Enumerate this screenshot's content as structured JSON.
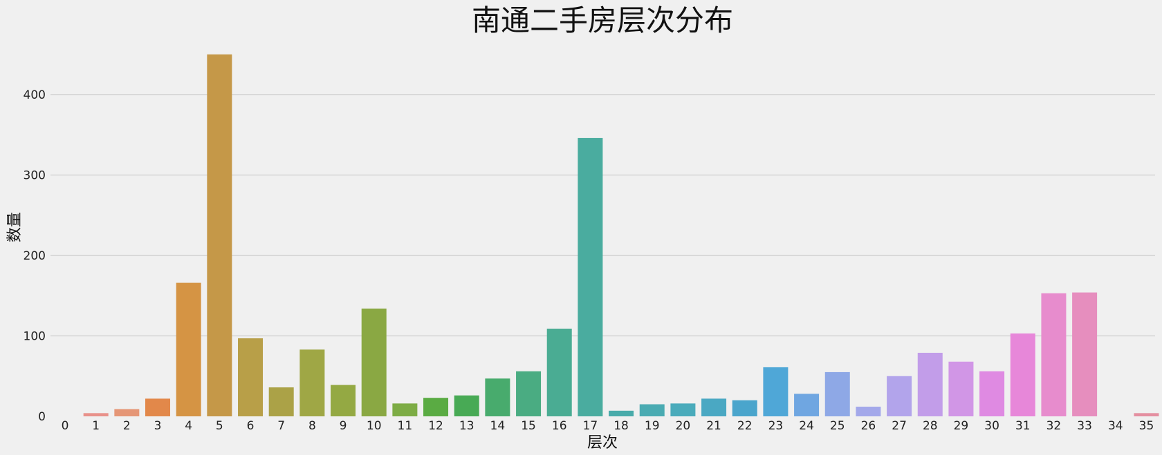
{
  "chart_data": {
    "type": "bar",
    "title": "南通二手房层次分布",
    "xlabel": "层次",
    "ylabel": "数量",
    "categories": [
      "0",
      "1",
      "2",
      "3",
      "4",
      "5",
      "6",
      "7",
      "8",
      "9",
      "10",
      "11",
      "12",
      "13",
      "14",
      "15",
      "16",
      "17",
      "18",
      "19",
      "20",
      "21",
      "22",
      "23",
      "24",
      "25",
      "26",
      "27",
      "28",
      "29",
      "30",
      "31",
      "32",
      "33",
      "34",
      "35"
    ],
    "values": [
      0,
      4,
      9,
      22,
      166,
      450,
      97,
      36,
      83,
      39,
      134,
      16,
      23,
      26,
      47,
      56,
      109,
      346,
      7,
      15,
      16,
      22,
      20,
      61,
      28,
      55,
      12,
      50,
      79,
      68,
      56,
      103,
      153,
      154,
      0,
      4
    ],
    "colors": [
      "#f0f0f0",
      "#e8918a",
      "#e59676",
      "#e2884a",
      "#d59444",
      "#c59848",
      "#b89f48",
      "#aba247",
      "#9fa745",
      "#94a943",
      "#8aa843",
      "#7dac45",
      "#5aab43",
      "#48aa55",
      "#48ab6d",
      "#4aac82",
      "#4aac93",
      "#4aac9f",
      "#49abaa",
      "#4aabb2",
      "#4aabbb",
      "#4aa8c3",
      "#4aa5cc",
      "#4fa7d7",
      "#6fa6e1",
      "#8ea8e6",
      "#a3a8ea",
      "#b2a4eb",
      "#c29de9",
      "#d196e6",
      "#df8ae2",
      "#e787d9",
      "#e78ccd",
      "#e68ebe",
      "#e58fb0",
      "#e48fa0"
    ],
    "ylim": [
      0,
      470
    ],
    "yticks": [
      0,
      100,
      200,
      300,
      400
    ],
    "grid": true,
    "legend": "none"
  }
}
